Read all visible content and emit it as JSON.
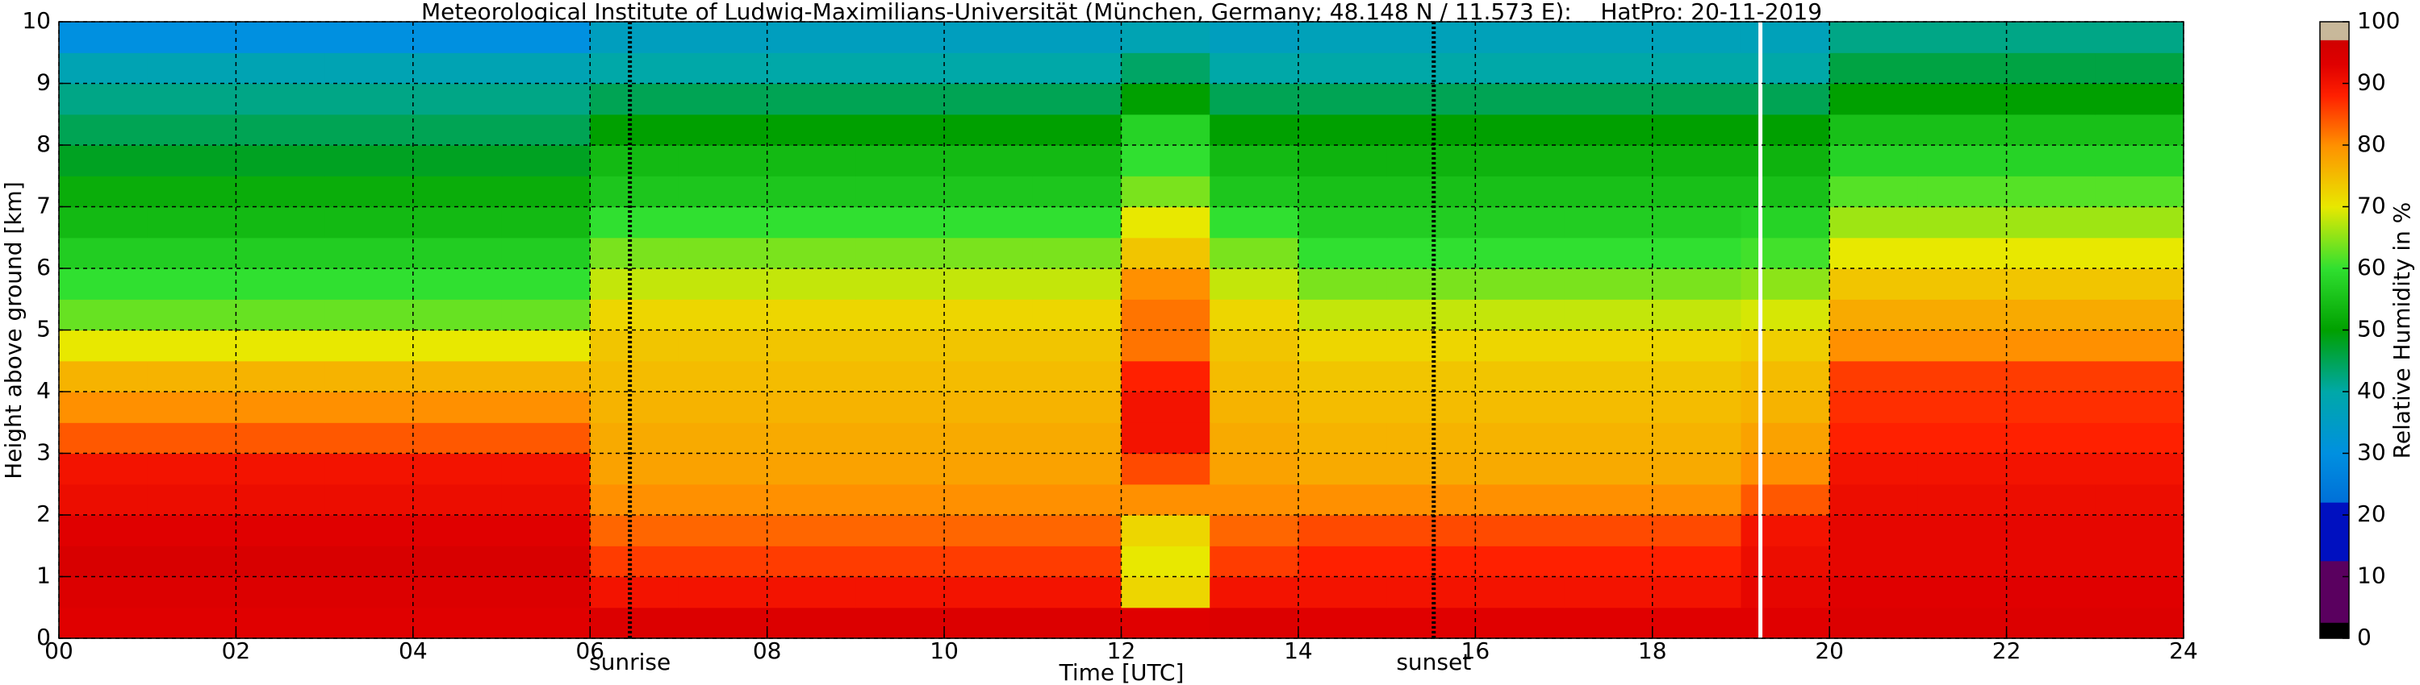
{
  "chart_data": {
    "type": "heatmap",
    "title": "Meteorological Institute of Ludwig-Maximilians-Universität (München, Germany; 48.148 N / 11.573 E):    HatPro: 20-11-2019",
    "xlabel": "Time [UTC]",
    "ylabel": "Height above ground [km]",
    "colorbar_label": "Relative Humidity in %",
    "x_edges": [
      0,
      1,
      2,
      3,
      4,
      5,
      6,
      7,
      8,
      9,
      10,
      11,
      12,
      13,
      14,
      15,
      16,
      17,
      18,
      19,
      20,
      21,
      22,
      23,
      24
    ],
    "y_edges": [
      0,
      0.5,
      1,
      1.5,
      2,
      2.5,
      3,
      3.5,
      4,
      4.5,
      5,
      5.5,
      6,
      6.5,
      7,
      7.5,
      8,
      8.5,
      9,
      9.5,
      10
    ],
    "values": [
      [
        93,
        93,
        93,
        93,
        93,
        93,
        94,
        94,
        94,
        94,
        94,
        94,
        93,
        94,
        93,
        93,
        93,
        93,
        93,
        93,
        94,
        94,
        94,
        94
      ],
      [
        94,
        94,
        94,
        94,
        94,
        94,
        90,
        90,
        90,
        90,
        90,
        90,
        72,
        90,
        90,
        90,
        90,
        90,
        90,
        92,
        93,
        93,
        93,
        93
      ],
      [
        95,
        95,
        95,
        95,
        95,
        95,
        86,
        86,
        86,
        86,
        86,
        86,
        70,
        86,
        88,
        88,
        88,
        88,
        88,
        91,
        92,
        92,
        92,
        92
      ],
      [
        93,
        93,
        93,
        93,
        93,
        93,
        83,
        83,
        83,
        83,
        83,
        83,
        72,
        83,
        85,
        85,
        85,
        85,
        85,
        90,
        92,
        92,
        92,
        92
      ],
      [
        91,
        91,
        91,
        91,
        91,
        91,
        80,
        80,
        80,
        80,
        80,
        80,
        80,
        80,
        80,
        80,
        80,
        80,
        80,
        84,
        91,
        91,
        91,
        91
      ],
      [
        90,
        90,
        90,
        90,
        90,
        90,
        78,
        78,
        78,
        78,
        78,
        78,
        85,
        78,
        77,
        77,
        77,
        77,
        77,
        80,
        90,
        90,
        90,
        90
      ],
      [
        84,
        84,
        84,
        84,
        84,
        84,
        77,
        77,
        77,
        77,
        77,
        77,
        90,
        77,
        76,
        76,
        76,
        76,
        76,
        78,
        88,
        88,
        88,
        88
      ],
      [
        80,
        80,
        80,
        80,
        80,
        80,
        76,
        76,
        76,
        76,
        76,
        76,
        90,
        76,
        75,
        75,
        75,
        75,
        75,
        76,
        87,
        87,
        87,
        87
      ],
      [
        76,
        76,
        76,
        76,
        76,
        76,
        75,
        75,
        75,
        75,
        75,
        75,
        88,
        75,
        74,
        74,
        74,
        74,
        74,
        75,
        86,
        86,
        86,
        86
      ],
      [
        70,
        70,
        70,
        70,
        70,
        70,
        74,
        74,
        74,
        74,
        74,
        74,
        82,
        74,
        72,
        72,
        72,
        72,
        72,
        73,
        80,
        80,
        80,
        80
      ],
      [
        63,
        63,
        63,
        63,
        63,
        63,
        72,
        72,
        72,
        72,
        72,
        72,
        82,
        72,
        68,
        68,
        68,
        68,
        68,
        69,
        77,
        77,
        77,
        77
      ],
      [
        60,
        60,
        60,
        60,
        60,
        60,
        68,
        68,
        68,
        68,
        68,
        68,
        80,
        68,
        64,
        64,
        64,
        64,
        64,
        65,
        74,
        74,
        74,
        74
      ],
      [
        57,
        57,
        57,
        57,
        57,
        57,
        64,
        64,
        64,
        64,
        64,
        64,
        74,
        64,
        60,
        60,
        60,
        60,
        60,
        61,
        70,
        70,
        70,
        70
      ],
      [
        54,
        54,
        54,
        54,
        54,
        54,
        60,
        60,
        60,
        60,
        60,
        60,
        70,
        60,
        57,
        57,
        57,
        57,
        57,
        58,
        66,
        66,
        66,
        66
      ],
      [
        52,
        52,
        52,
        52,
        52,
        52,
        56,
        56,
        56,
        56,
        56,
        56,
        64,
        56,
        55,
        55,
        55,
        55,
        55,
        55,
        62,
        62,
        62,
        62
      ],
      [
        48,
        48,
        48,
        48,
        48,
        48,
        54,
        54,
        54,
        54,
        54,
        54,
        60,
        54,
        53,
        53,
        53,
        53,
        53,
        53,
        58,
        58,
        58,
        58
      ],
      [
        45,
        45,
        45,
        45,
        45,
        45,
        50,
        50,
        50,
        50,
        50,
        50,
        58,
        50,
        50,
        50,
        50,
        50,
        50,
        50,
        55,
        55,
        55,
        55
      ],
      [
        42,
        42,
        42,
        42,
        42,
        42,
        45,
        45,
        45,
        45,
        45,
        45,
        50,
        45,
        45,
        45,
        45,
        45,
        45,
        45,
        50,
        50,
        50,
        50
      ],
      [
        38,
        38,
        38,
        38,
        38,
        38,
        40,
        40,
        40,
        40,
        40,
        40,
        44,
        40,
        40,
        40,
        40,
        40,
        40,
        40,
        46,
        46,
        46,
        46
      ],
      [
        30,
        30,
        30,
        30,
        30,
        30,
        36,
        36,
        36,
        36,
        36,
        36,
        38,
        36,
        37,
        37,
        37,
        37,
        37,
        37,
        42,
        42,
        42,
        42
      ]
    ],
    "xlim": [
      0,
      24
    ],
    "xticks": [
      {
        "value": 0,
        "label": "00"
      },
      {
        "value": 2,
        "label": "02"
      },
      {
        "value": 4,
        "label": "04"
      },
      {
        "value": 6,
        "label": "06"
      },
      {
        "value": 8,
        "label": "08"
      },
      {
        "value": 10,
        "label": "10"
      },
      {
        "value": 12,
        "label": "12"
      },
      {
        "value": 14,
        "label": "14"
      },
      {
        "value": 16,
        "label": "16"
      },
      {
        "value": 18,
        "label": "18"
      },
      {
        "value": 20,
        "label": "20"
      },
      {
        "value": 22,
        "label": "22"
      },
      {
        "value": 24,
        "label": "24"
      }
    ],
    "ylim": [
      0,
      10
    ],
    "yticks": [
      0,
      1,
      2,
      3,
      4,
      5,
      6,
      7,
      8,
      9,
      10
    ],
    "clim": [
      0,
      100
    ],
    "cticks": [
      0,
      10,
      20,
      30,
      40,
      50,
      60,
      70,
      80,
      90,
      100
    ],
    "colorscale": [
      {
        "value": 0,
        "color": "#000000"
      },
      {
        "value": 2.5,
        "color": "#000000"
      },
      {
        "value": 2.6,
        "color": "#5a005f"
      },
      {
        "value": 12.5,
        "color": "#5a005f"
      },
      {
        "value": 12.6,
        "color": "#0010c0"
      },
      {
        "value": 22,
        "color": "#0010c0"
      },
      {
        "value": 22.1,
        "color": "#0070d8"
      },
      {
        "value": 30,
        "color": "#0090e0"
      },
      {
        "value": 40,
        "color": "#00a8a8"
      },
      {
        "value": 50,
        "color": "#00a000"
      },
      {
        "value": 60,
        "color": "#30e030"
      },
      {
        "value": 70,
        "color": "#e8e800"
      },
      {
        "value": 80,
        "color": "#ff9000"
      },
      {
        "value": 88,
        "color": "#ff2000"
      },
      {
        "value": 93,
        "color": "#e00000"
      },
      {
        "value": 97,
        "color": "#d00000"
      },
      {
        "value": 97.1,
        "color": "#c8b89a"
      },
      {
        "value": 100,
        "color": "#c8b89a"
      }
    ],
    "markers": [
      {
        "x": 6.45,
        "label": "sunrise"
      },
      {
        "x": 15.53,
        "label": "sunset"
      }
    ],
    "data_gaps": [
      19.22
    ],
    "grid": true
  }
}
